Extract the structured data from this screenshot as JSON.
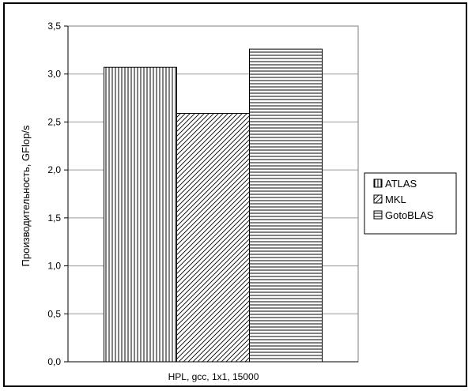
{
  "chart_data": {
    "type": "bar",
    "categories": [
      "HPL, gcc, 1x1, 15000"
    ],
    "series": [
      {
        "name": "ATLAS",
        "values": [
          3.07
        ],
        "pattern": "vertical"
      },
      {
        "name": "MKL",
        "values": [
          2.59
        ],
        "pattern": "diagonal"
      },
      {
        "name": "GotoBLAS",
        "values": [
          3.26
        ],
        "pattern": "horizontal"
      }
    ],
    "ylabel": "Производительность, GFlop/s",
    "ylim": [
      0,
      3.5
    ],
    "yticks": [
      "0,0",
      "0,5",
      "1,0",
      "1,5",
      "2,0",
      "2,5",
      "3,0",
      "3,5"
    ],
    "ytick_values": [
      0,
      0.5,
      1.0,
      1.5,
      2.0,
      2.5,
      3.0,
      3.5
    ],
    "grid": true,
    "legend": "right",
    "colors": {
      "bar_fill": "#ffffff",
      "pattern": "#000000",
      "grid": "#999999"
    }
  }
}
